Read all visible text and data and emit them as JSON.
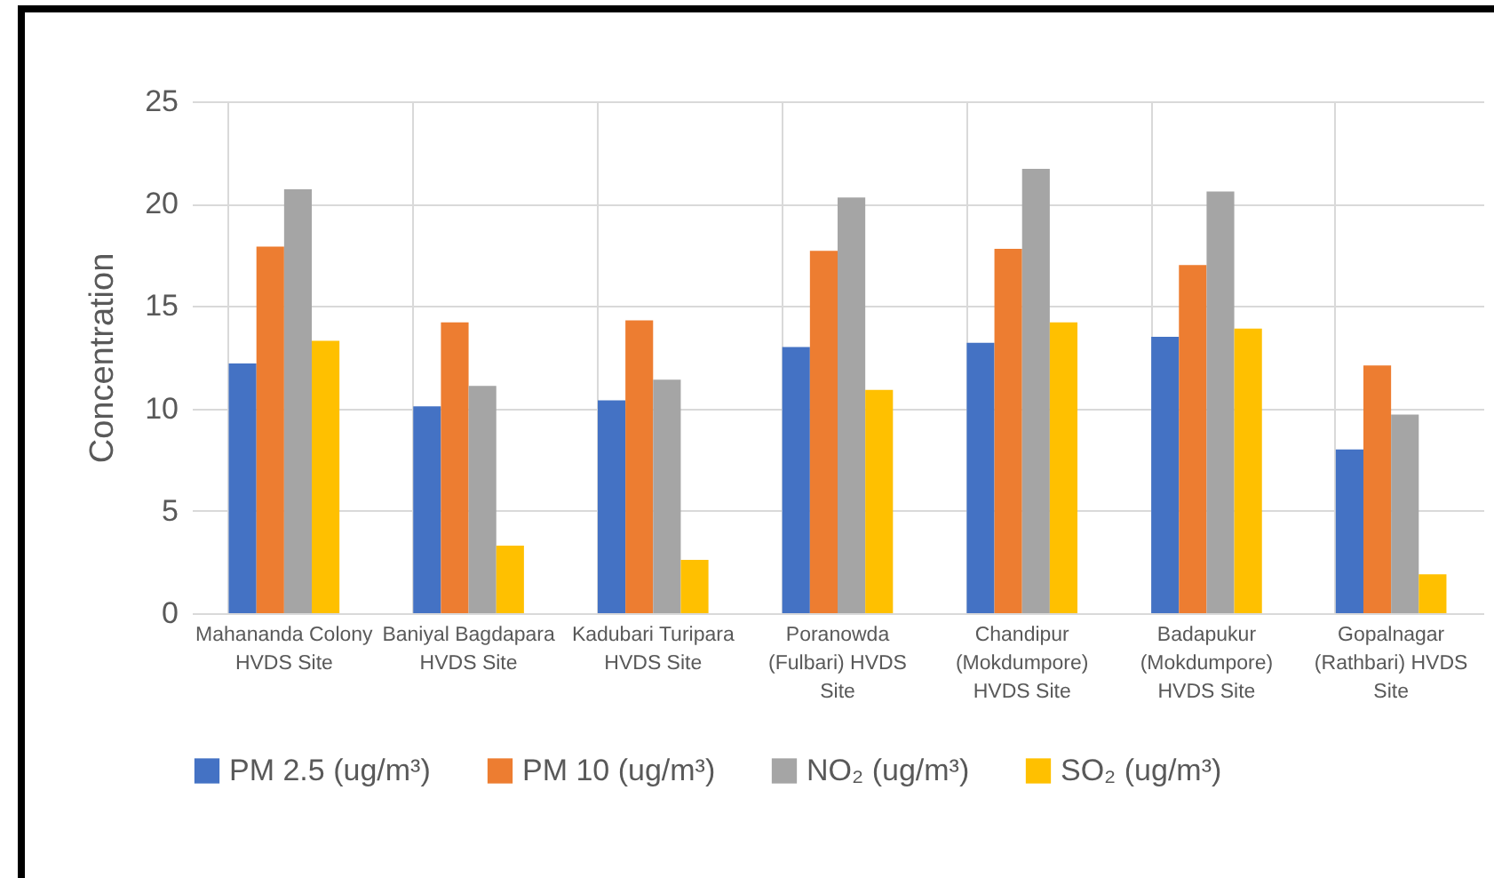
{
  "chart_data": {
    "type": "bar",
    "ylabel": "Concentration",
    "categories": [
      "Mahananda Colony HVDS Site",
      "Baniyal Bagdapara HVDS Site",
      "Kadubari Turipara HVDS Site",
      "Poranowda (Fulbari) HVDS Site",
      "Chandipur (Mokdumpore) HVDS Site",
      "Badapukur (Mokdumpore) HVDS Site",
      "Gopalnagar (Rathbari) HVDS Site"
    ],
    "series": [
      {
        "name": "PM 2.5 (ug/m³)",
        "color": "#4472c4",
        "values": [
          12.2,
          10.1,
          10.4,
          13.0,
          13.2,
          13.5,
          8.0
        ]
      },
      {
        "name": "PM 10 (ug/m³)",
        "color": "#ed7d31",
        "values": [
          17.9,
          14.2,
          14.3,
          17.7,
          17.8,
          17.0,
          12.1
        ]
      },
      {
        "name": "NO₂ (ug/m³)",
        "color": "#a5a5a5",
        "values": [
          20.7,
          11.1,
          11.4,
          20.3,
          21.7,
          20.6,
          9.7
        ]
      },
      {
        "name": "SO₂ (ug/m³)",
        "color": "#ffc000",
        "values": [
          13.3,
          3.3,
          2.6,
          10.9,
          14.2,
          13.9,
          1.9
        ]
      }
    ],
    "ylim": [
      0,
      25
    ],
    "yticks": [
      0,
      5,
      10,
      15,
      20,
      25
    ],
    "grid": true,
    "legend": "bottom"
  }
}
